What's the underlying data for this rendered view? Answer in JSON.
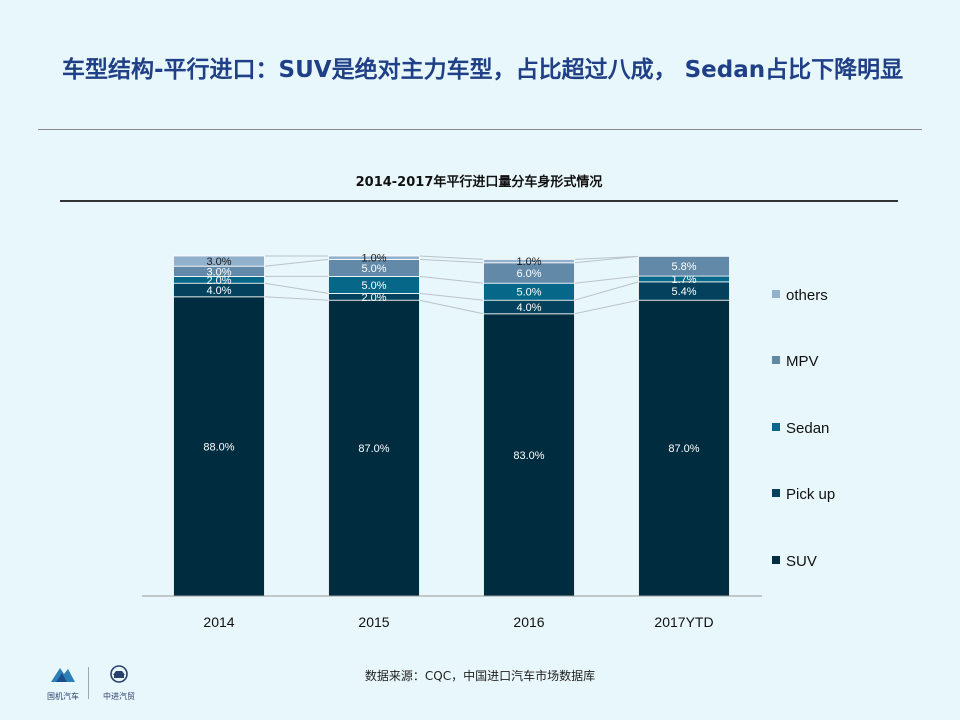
{
  "page": {
    "title": "车型结构-平行进口：SUV是绝对主力车型，占比超过八成， Sedan占比下降明显",
    "source": "数据来源：CQC，中国进口汽车市场数据库",
    "logos": [
      {
        "icon": "mountain-logo-icon",
        "text": "国机汽车"
      },
      {
        "icon": "car-badge-logo-icon",
        "text": "中进汽贸"
      }
    ]
  },
  "chart_data": {
    "type": "bar",
    "stacked": true,
    "title": "2014-2017年平行进口量分车身形式情况",
    "categories": [
      "2014",
      "2015",
      "2016",
      "2017YTD"
    ],
    "series": [
      {
        "name": "SUV",
        "values": [
          88.0,
          87.0,
          83.0,
          87.0
        ],
        "labels": [
          "88.0%",
          "87.0%",
          "83.0%",
          "87.0%"
        ],
        "color": "#002c3f"
      },
      {
        "name": "Pick up",
        "values": [
          4.0,
          2.0,
          4.0,
          5.4
        ],
        "labels": [
          "4.0%",
          "2.0%",
          "4.0%",
          "5.4%"
        ],
        "color": "#03415c"
      },
      {
        "name": "Sedan",
        "values": [
          2.0,
          5.0,
          5.0,
          1.7
        ],
        "labels": [
          "2.0%",
          "5.0%",
          "5.0%",
          "1.7%"
        ],
        "color": "#066788"
      },
      {
        "name": "MPV",
        "values": [
          3.0,
          5.0,
          6.0,
          5.8
        ],
        "labels": [
          "3.0%",
          "5.0%",
          "6.0%",
          "5.8%"
        ],
        "color": "#6289a8"
      },
      {
        "name": "others",
        "values": [
          3.0,
          1.0,
          1.0,
          0.0
        ],
        "labels": [
          "3.0%",
          "1.0%",
          "1.0%",
          ""
        ],
        "color": "#91b1cc"
      }
    ],
    "legend_order": [
      "others",
      "MPV",
      "Sedan",
      "Pick up",
      "SUV"
    ],
    "legend_position": "right",
    "grid": false,
    "series_lines": true,
    "ylim": [
      0,
      100
    ]
  }
}
